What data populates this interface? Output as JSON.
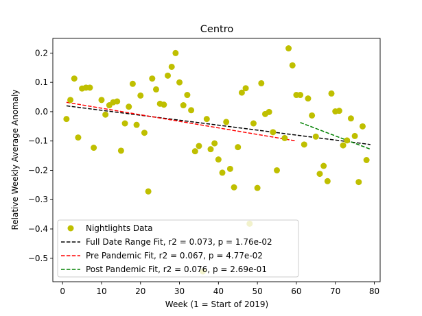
{
  "chart_data": {
    "type": "scatter",
    "title": "Centro",
    "xlabel": "Week (1 = Start of 2019)",
    "ylabel": "Relative Weekly Average Anomaly",
    "xlim": [
      -2.5,
      81.5
    ],
    "ylim": [
      -0.58,
      0.25
    ],
    "xticks": [
      0,
      10,
      20,
      30,
      40,
      50,
      60,
      70,
      80
    ],
    "yticks": [
      -0.5,
      -0.4,
      -0.3,
      -0.2,
      -0.1,
      0.0,
      0.1,
      0.2
    ],
    "ytick_labels": [
      "−0.5",
      "−0.4",
      "−0.3",
      "−0.2",
      "−0.1",
      "0.0",
      "0.1",
      "0.2"
    ],
    "grid": false,
    "legend_position": "lower-left",
    "points": {
      "name": "Nightlights Data",
      "color": "#bfbf00",
      "x": [
        1,
        2,
        3,
        4,
        5,
        6,
        7,
        8,
        10,
        11,
        12,
        13,
        14,
        15,
        16,
        17,
        18,
        19,
        20,
        21,
        22,
        23,
        24,
        25,
        26,
        27,
        28,
        29,
        30,
        31,
        32,
        33,
        34,
        35,
        36,
        37,
        38,
        39,
        40,
        41,
        42,
        43,
        44,
        45,
        46,
        47,
        48,
        49,
        50,
        51,
        52,
        53,
        54,
        55,
        57,
        58,
        59,
        60,
        61,
        62,
        63,
        64,
        65,
        66,
        67,
        68,
        69,
        70,
        71,
        72,
        73,
        74,
        75,
        76,
        77,
        78
      ],
      "y": [
        -0.025,
        0.04,
        0.113,
        -0.088,
        0.079,
        0.082,
        0.082,
        -0.123,
        0.04,
        -0.01,
        0.022,
        0.032,
        0.035,
        -0.133,
        -0.04,
        0.017,
        0.095,
        -0.045,
        0.055,
        -0.072,
        -0.272,
        0.113,
        0.076,
        0.027,
        0.024,
        0.123,
        0.153,
        0.2,
        0.1,
        0.022,
        0.057,
        0.005,
        -0.135,
        -0.117,
        -0.545,
        -0.025,
        -0.128,
        -0.108,
        -0.163,
        -0.208,
        -0.035,
        -0.195,
        -0.258,
        -0.121,
        0.065,
        0.08,
        -0.382,
        -0.04,
        -0.26,
        0.097,
        -0.008,
        -0.001,
        -0.07,
        -0.2,
        -0.09,
        0.216,
        0.158,
        0.057,
        0.057,
        -0.112,
        0.045,
        -0.013,
        -0.085,
        -0.212,
        -0.185,
        -0.237,
        0.062,
        0.001,
        0.003,
        -0.115,
        -0.098,
        -0.023,
        -0.083,
        -0.24,
        -0.05,
        -0.165
      ]
    },
    "fits": [
      {
        "name": "Full Date Range Fit, r2 = 0.073, p = 1.76e-02",
        "color": "#000000",
        "x": [
          1,
          79
        ],
        "y": [
          0.02,
          -0.112
        ]
      },
      {
        "name": "Pre Pandemic Fit, r2 = 0.067, p = 4.77e-02",
        "color": "#ff0000",
        "x": [
          1,
          60
        ],
        "y": [
          0.032,
          -0.1
        ]
      },
      {
        "name": "Post Pandemic Fit, r2 = 0.076, p = 2.69e-01",
        "color": "#008000",
        "x": [
          61,
          79
        ],
        "y": [
          -0.037,
          -0.128
        ]
      }
    ]
  }
}
